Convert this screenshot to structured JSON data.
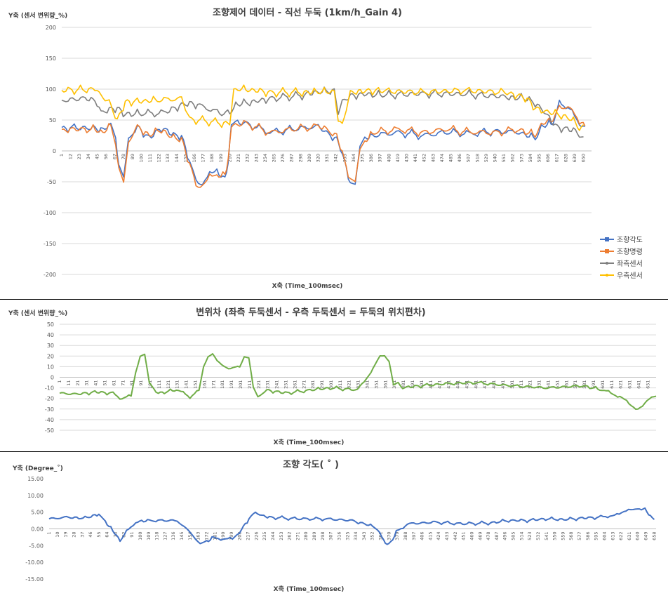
{
  "chart_data": [
    {
      "type": "line",
      "title": "조향제어 데이터 - 직선 두둑 (1km/h_Gain 4)",
      "ylabel": "Y축 (센서 변위량_%)",
      "xlabel": "X축 (Time_100msec)",
      "ylim": [
        -200,
        200
      ],
      "yticks": [
        200,
        150,
        100,
        50,
        0,
        -50,
        -100,
        -150,
        -200
      ],
      "xlim": [
        1,
        660
      ],
      "xtick_labels": [
        "1",
        "12",
        "23",
        "34",
        "45",
        "56",
        "67",
        "78",
        "89",
        "100",
        "111",
        "122",
        "133",
        "144",
        "155",
        "166",
        "177",
        "188",
        "199",
        "210",
        "221",
        "232",
        "243",
        "254",
        "265",
        "276",
        "287",
        "298",
        "309",
        "320",
        "331",
        "342",
        "353",
        "364",
        "375",
        "386",
        "397",
        "408",
        "419",
        "430",
        "441",
        "452",
        "463",
        "474",
        "485",
        "496",
        "507",
        "518",
        "529",
        "540",
        "551",
        "562",
        "573",
        "584",
        "595",
        "606",
        "617",
        "628",
        "639",
        "650"
      ],
      "legend_position": "right",
      "grid": true,
      "series": [
        {
          "name": "조향각도",
          "color": "#4472C4",
          "marker": "square",
          "x": [
            1,
            40,
            52,
            62,
            68,
            72,
            78,
            84,
            95,
            110,
            125,
            140,
            150,
            160,
            168,
            176,
            185,
            194,
            204,
            208,
            212,
            230,
            260,
            290,
            320,
            330,
            343,
            350,
            360,
            366,
            372,
            378,
            390,
            420,
            450,
            480,
            510,
            540,
            570,
            590,
            600,
            612,
            620,
            628,
            636,
            645,
            652
          ],
          "y": [
            38,
            37,
            35,
            42,
            20,
            -25,
            -45,
            20,
            40,
            20,
            38,
            25,
            25,
            -15,
            -50,
            -52,
            -40,
            -35,
            -45,
            -20,
            45,
            45,
            30,
            35,
            40,
            30,
            20,
            -5,
            -50,
            -55,
            5,
            20,
            25,
            30,
            25,
            30,
            28,
            32,
            30,
            20,
            40,
            45,
            75,
            75,
            60,
            45,
            35
          ]
        },
        {
          "name": "조향명령",
          "color": "#ED7D31",
          "marker": "square",
          "x": [
            1,
            40,
            52,
            62,
            68,
            72,
            78,
            84,
            95,
            110,
            125,
            140,
            150,
            160,
            168,
            176,
            185,
            194,
            204,
            208,
            212,
            230,
            260,
            290,
            320,
            330,
            343,
            350,
            360,
            366,
            372,
            378,
            390,
            420,
            450,
            480,
            510,
            540,
            570,
            590,
            600,
            612,
            620,
            628,
            636,
            645,
            652
          ],
          "y": [
            35,
            35,
            30,
            40,
            10,
            -30,
            -52,
            15,
            40,
            25,
            35,
            20,
            20,
            -20,
            -55,
            -58,
            -45,
            -40,
            -40,
            -15,
            40,
            45,
            30,
            35,
            40,
            35,
            25,
            -5,
            -45,
            -52,
            0,
            15,
            30,
            35,
            30,
            35,
            30,
            30,
            35,
            25,
            45,
            50,
            70,
            72,
            65,
            50,
            40
          ]
        },
        {
          "name": "좌측센서",
          "color": "#7F7F7F",
          "marker": "dot",
          "x": [
            1,
            30,
            45,
            50,
            60,
            70,
            80,
            100,
            130,
            150,
            160,
            170,
            200,
            210,
            220,
            240,
            260,
            300,
            320,
            340,
            345,
            350,
            360,
            380,
            400,
            450,
            500,
            550,
            575,
            590,
            600,
            615,
            630,
            640,
            645,
            650
          ],
          "y": [
            82,
            85,
            80,
            62,
            68,
            70,
            60,
            60,
            62,
            75,
            78,
            75,
            60,
            62,
            75,
            80,
            85,
            90,
            95,
            98,
            62,
            80,
            90,
            92,
            90,
            93,
            92,
            88,
            85,
            78,
            65,
            40,
            35,
            32,
            25,
            20
          ]
        },
        {
          "name": "우측센서",
          "color": "#FFC000",
          "marker": "dot",
          "x": [
            1,
            45,
            50,
            60,
            70,
            80,
            100,
            120,
            150,
            160,
            200,
            210,
            215,
            220,
            240,
            260,
            300,
            320,
            340,
            345,
            350,
            360,
            380,
            400,
            450,
            500,
            550,
            570,
            580,
            590,
            600,
            615,
            630,
            640,
            645,
            650
          ],
          "y": [
            98,
            100,
            88,
            80,
            50,
            80,
            80,
            82,
            85,
            52,
            45,
            45,
            98,
            100,
            98,
            95,
            95,
            95,
            96,
            50,
            42,
            95,
            98,
            97,
            95,
            98,
            95,
            90,
            85,
            70,
            65,
            60,
            55,
            45,
            35,
            40
          ]
        }
      ]
    },
    {
      "type": "line",
      "title": "변위차 (좌측 두둑센서 - 우측 두둑센서 = 두둑의 위치편차)",
      "ylabel": "Y축 (센서 변위량_%)",
      "xlabel": "X축 (Time_100msec)",
      "ylim": [
        -50,
        50
      ],
      "yticks": [
        50,
        40,
        30,
        20,
        10,
        0,
        -10,
        -20,
        -30,
        -40,
        -50
      ],
      "xlim": [
        1,
        660
      ],
      "xtick_labels": [
        "1",
        "11",
        "21",
        "31",
        "41",
        "51",
        "61",
        "71",
        "81",
        "91",
        "101",
        "111",
        "121",
        "131",
        "141",
        "151",
        "161",
        "171",
        "181",
        "191",
        "201",
        "211",
        "221",
        "231",
        "241",
        "251",
        "261",
        "271",
        "281",
        "291",
        "301",
        "311",
        "321",
        "331",
        "341",
        "351",
        "361",
        "371",
        "381",
        "391",
        "401",
        "411",
        "421",
        "431",
        "441",
        "451",
        "461",
        "471",
        "481",
        "491",
        "501",
        "511",
        "521",
        "531",
        "541",
        "551",
        "561",
        "571",
        "581",
        "591",
        "601",
        "611",
        "621",
        "631",
        "641",
        "651"
      ],
      "grid": true,
      "series": [
        {
          "name": "",
          "color": "#70AD47",
          "x": [
            1,
            20,
            40,
            60,
            70,
            80,
            85,
            90,
            95,
            100,
            110,
            130,
            145,
            155,
            160,
            165,
            170,
            175,
            180,
            190,
            200,
            205,
            210,
            215,
            220,
            230,
            250,
            280,
            300,
            330,
            345,
            350,
            355,
            360,
            365,
            370,
            375,
            380,
            400,
            430,
            460,
            500,
            540,
            580,
            600,
            610,
            620,
            630,
            640,
            645,
            650,
            655,
            660
          ],
          "y": [
            -15,
            -16,
            -14,
            -15,
            -20,
            -18,
            5,
            20,
            21,
            -5,
            -15,
            -12,
            -18,
            -13,
            10,
            20,
            22,
            15,
            12,
            8,
            10,
            20,
            18,
            -10,
            -18,
            -12,
            -15,
            -12,
            -10,
            -12,
            5,
            12,
            20,
            21,
            15,
            -8,
            -5,
            -10,
            -8,
            -6,
            -5,
            -8,
            -10,
            -8,
            -12,
            -15,
            -18,
            -25,
            -30,
            -28,
            -22,
            -18,
            -18
          ]
        }
      ]
    },
    {
      "type": "line",
      "title": "조향 각도( ˚ )",
      "ylabel": "Y축 (Degree_˚)",
      "xlabel": "X축 (Time_100msec)",
      "ylim": [
        -15,
        15
      ],
      "yticks": [
        "15.00",
        "10.00",
        "5.00",
        "0.00",
        "-5.00",
        "-10.00",
        "-15.00"
      ],
      "xlim": [
        1,
        660
      ],
      "xtick_labels": [
        "1",
        "10",
        "19",
        "28",
        "37",
        "46",
        "55",
        "64",
        "73",
        "82",
        "91",
        "100",
        "109",
        "118",
        "127",
        "136",
        "145",
        "154",
        "163",
        "172",
        "181",
        "190",
        "199",
        "208",
        "217",
        "226",
        "235",
        "244",
        "253",
        "262",
        "271",
        "280",
        "289",
        "298",
        "307",
        "316",
        "325",
        "334",
        "343",
        "352",
        "361",
        "370",
        "379",
        "388",
        "397",
        "406",
        "415",
        "424",
        "433",
        "442",
        "451",
        "460",
        "469",
        "478",
        "487",
        "496",
        "505",
        "514",
        "523",
        "532",
        "541",
        "550",
        "559",
        "568",
        "577",
        "586",
        "595",
        "604",
        "613",
        "622",
        "631",
        "640",
        "649",
        "658"
      ],
      "grid": false,
      "series": [
        {
          "name": "",
          "color": "#4472C4",
          "x": [
            1,
            20,
            40,
            55,
            62,
            70,
            78,
            85,
            95,
            110,
            140,
            150,
            160,
            165,
            172,
            180,
            190,
            200,
            210,
            218,
            225,
            232,
            240,
            270,
            300,
            330,
            350,
            360,
            366,
            372,
            378,
            390,
            420,
            450,
            480,
            500,
            520,
            540,
            560,
            580,
            600,
            610,
            620,
            630,
            640,
            648,
            654,
            658
          ],
          "y": [
            3,
            3.5,
            3.2,
            4.5,
            2,
            -0.5,
            -3.5,
            -1,
            2,
            2.5,
            2.5,
            0,
            -3,
            -4.2,
            -4,
            -2.5,
            -3,
            -3.2,
            0,
            3,
            5,
            4,
            3.5,
            3,
            3,
            2.5,
            1,
            -1,
            -4.5,
            -4.3,
            -1,
            1.5,
            2,
            1.5,
            1.8,
            2.5,
            2.5,
            3,
            2.8,
            3.2,
            3.5,
            4,
            4.2,
            6,
            5.8,
            6,
            3.5,
            3
          ]
        }
      ]
    }
  ]
}
